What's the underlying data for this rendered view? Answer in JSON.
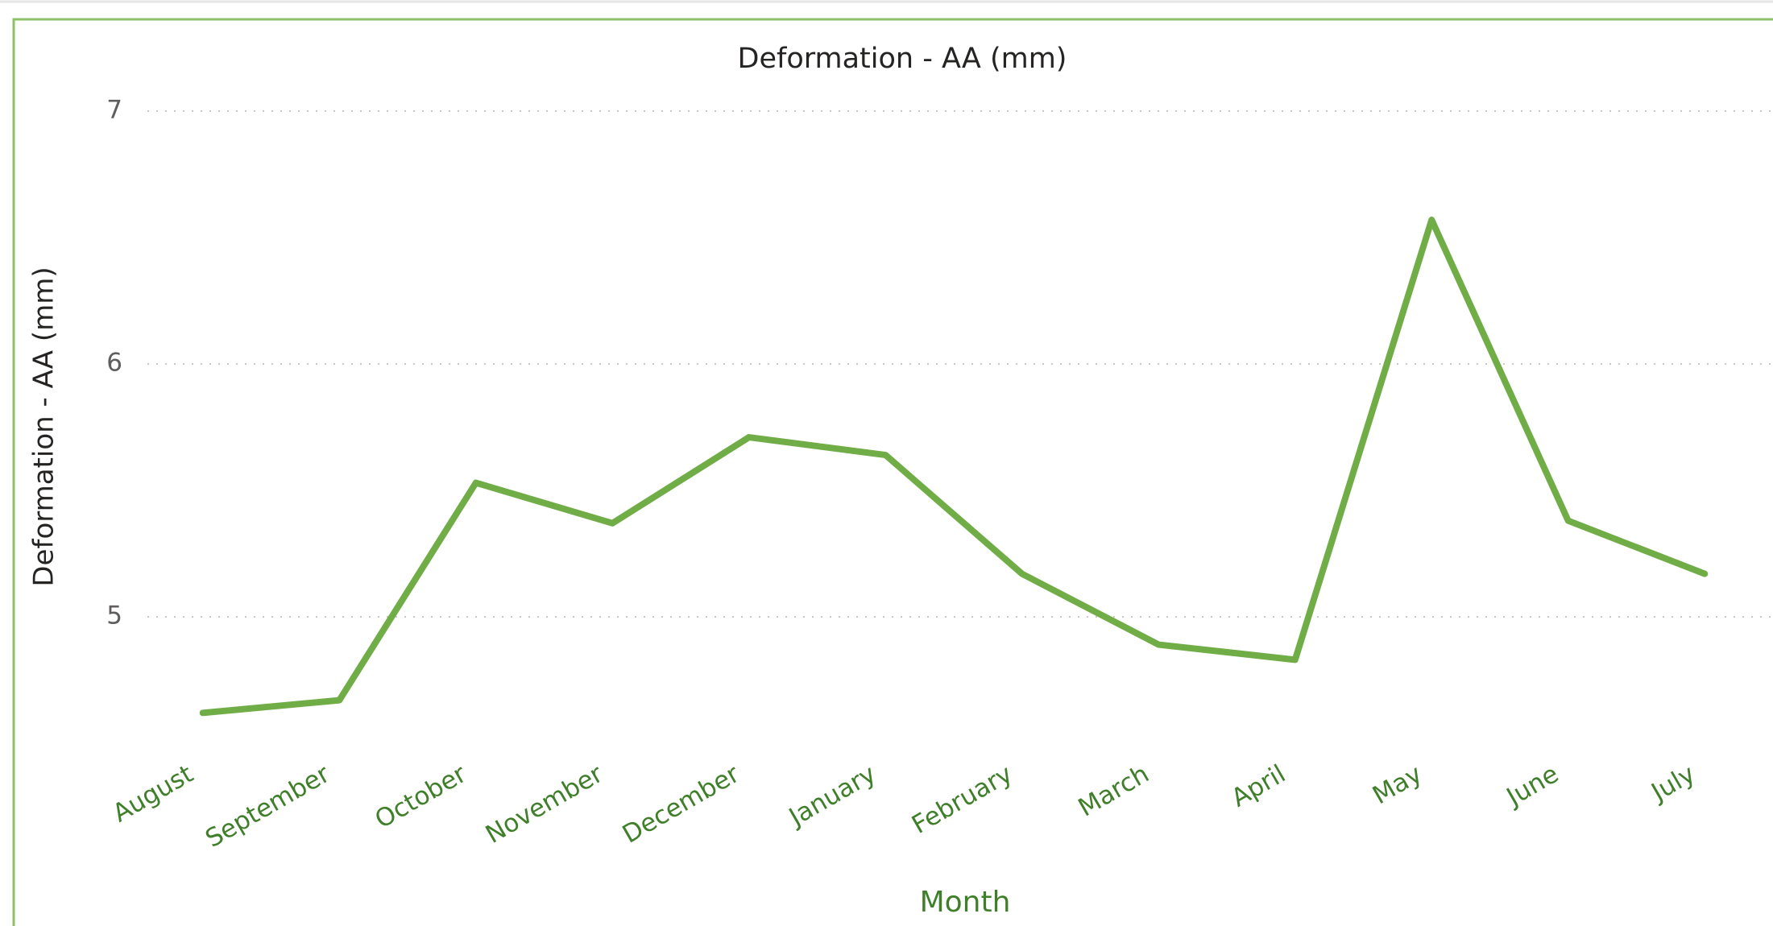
{
  "chart_data": {
    "type": "line",
    "title": "Deformation - AA (mm)",
    "x_label": "Month",
    "y_label": "Deformation - AA (mm)",
    "categories": [
      "August",
      "September",
      "October",
      "November",
      "December",
      "January",
      "February",
      "March",
      "April",
      "May",
      "June",
      "July"
    ],
    "values": [
      4.62,
      4.67,
      5.53,
      5.37,
      5.71,
      5.64,
      5.17,
      4.89,
      4.83,
      6.57,
      5.38,
      5.17
    ],
    "color": "#70ad47",
    "ylim": [
      4.5,
      7
    ],
    "yticks": [
      5,
      6,
      7
    ],
    "grid": true
  }
}
